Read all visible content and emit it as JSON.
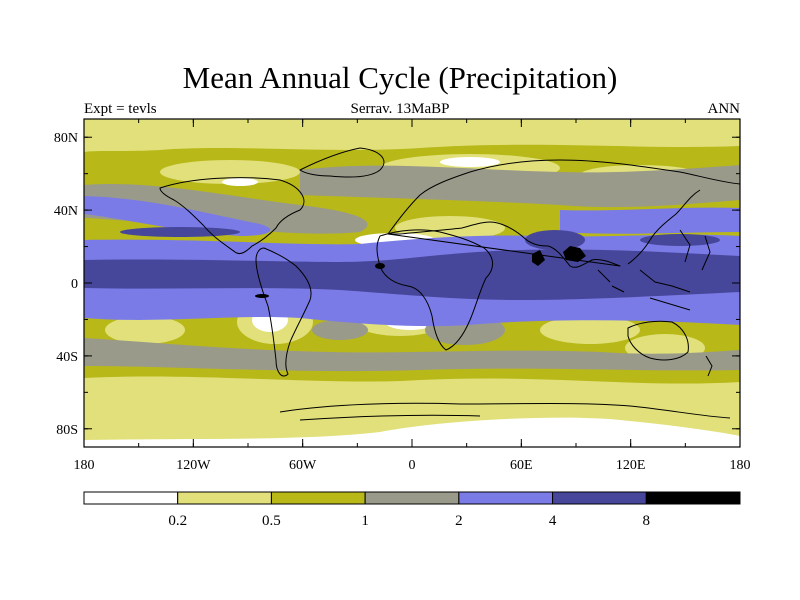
{
  "title": "Mean Annual Cycle (Precipitation)",
  "subtitle_left": "Expt = tevls",
  "subtitle_center": "Serrav.  13MaBP",
  "subtitle_right": "ANN",
  "lat_ticks": [
    {
      "value": 80,
      "label": "80N"
    },
    {
      "value": 40,
      "label": "40N"
    },
    {
      "value": 0,
      "label": "0"
    },
    {
      "value": -40,
      "label": "40S"
    },
    {
      "value": -80,
      "label": "80S"
    }
  ],
  "lon_ticks": [
    {
      "value": -180,
      "label": "180"
    },
    {
      "value": -120,
      "label": "120W"
    },
    {
      "value": -60,
      "label": "60W"
    },
    {
      "value": 0,
      "label": "0"
    },
    {
      "value": 60,
      "label": "60E"
    },
    {
      "value": 120,
      "label": "120E"
    },
    {
      "value": 180,
      "label": "180"
    }
  ],
  "colorbar": {
    "colors": [
      "#ffffff",
      "#e1e07a",
      "#b8b818",
      "#9a9a8a",
      "#7b7be8",
      "#46469a",
      "#000000"
    ],
    "labels": [
      "0.2",
      "0.5",
      "1",
      "2",
      "4",
      "8"
    ]
  },
  "colors": {
    "background_level": "#b8b818",
    "coastline": "#000000"
  }
}
